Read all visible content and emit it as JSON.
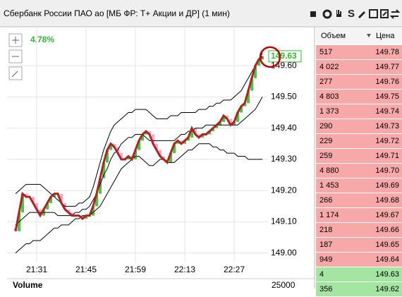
{
  "window": {
    "title": "Сбербанк России ПАО ао [МБ ФР: Т+ Акции и ДР] (1 мин)",
    "toolbar_text": "S"
  },
  "chart_data": {
    "type": "candlestick",
    "change_label": "4.78%",
    "last_price": 149.63,
    "categories": [
      null,
      null,
      null,
      null,
      null,
      null,
      "21:31",
      null,
      null,
      null,
      null,
      null,
      null,
      null,
      null,
      null,
      null,
      null,
      null,
      null,
      "21:45",
      null,
      null,
      null,
      null,
      null,
      null,
      null,
      null,
      null,
      null,
      null,
      null,
      null,
      "21:59",
      null,
      null,
      null,
      null,
      null,
      null,
      null,
      null,
      null,
      null,
      null,
      null,
      null,
      "22:13",
      null,
      null,
      null,
      null,
      null,
      null,
      null,
      null,
      null,
      null,
      null,
      null,
      null,
      "22:27",
      null,
      null,
      null,
      null,
      null,
      null,
      null,
      null
    ],
    "open": [
      149.08,
      149.07,
      149.13,
      149.19,
      149.18,
      149.18,
      149.16,
      149.14,
      149.12,
      149.14,
      149.16,
      149.18,
      149.19,
      149.19,
      149.16,
      149.14,
      149.13,
      149.12,
      149.12,
      149.12,
      149.11,
      149.12,
      149.12,
      149.15,
      149.19,
      149.24,
      149.29,
      149.33,
      149.35,
      149.34,
      149.32,
      149.3,
      149.3,
      149.31,
      149.3,
      149.33,
      149.36,
      149.38,
      149.39,
      149.38,
      149.35,
      149.33,
      149.31,
      149.3,
      149.29,
      149.32,
      149.35,
      149.36,
      149.35,
      149.36,
      149.37,
      149.4,
      149.38,
      149.37,
      149.38,
      149.38,
      149.39,
      149.4,
      149.41,
      149.42,
      149.44,
      149.43,
      149.41,
      149.42,
      149.45,
      149.47,
      149.48,
      149.52,
      149.56,
      149.6,
      149.62
    ],
    "close": [
      149.07,
      149.13,
      149.19,
      149.18,
      149.18,
      149.16,
      149.14,
      149.12,
      149.14,
      149.16,
      149.18,
      149.19,
      149.19,
      149.16,
      149.14,
      149.13,
      149.12,
      149.12,
      149.12,
      149.11,
      149.12,
      149.12,
      149.15,
      149.19,
      149.24,
      149.29,
      149.33,
      149.35,
      149.34,
      149.32,
      149.3,
      149.3,
      149.31,
      149.3,
      149.33,
      149.36,
      149.38,
      149.39,
      149.38,
      149.35,
      149.33,
      149.31,
      149.3,
      149.29,
      149.32,
      149.35,
      149.36,
      149.35,
      149.36,
      149.37,
      149.4,
      149.38,
      149.37,
      149.38,
      149.38,
      149.39,
      149.4,
      149.41,
      149.42,
      149.44,
      149.43,
      149.41,
      149.42,
      149.45,
      149.47,
      149.48,
      149.52,
      149.56,
      149.6,
      149.62,
      149.63
    ],
    "up_color": "#3ccc3c",
    "down_color": "#f0a8c8",
    "line_color": "#b22222",
    "band_color": "#000000",
    "bands": {
      "upper": [
        149.19,
        149.2,
        149.21,
        149.22,
        149.22,
        149.22,
        149.22,
        149.22,
        149.21,
        149.2,
        149.19,
        149.18,
        149.17,
        149.16,
        149.15,
        149.15,
        149.15,
        149.15,
        149.16,
        149.16,
        149.17,
        149.18,
        149.21,
        149.25,
        149.29,
        149.33,
        149.36,
        149.39,
        149.41,
        149.42,
        149.43,
        149.44,
        149.45,
        149.45,
        149.46,
        149.46,
        149.46,
        149.46,
        149.45,
        149.44,
        149.43,
        149.43,
        149.43,
        149.43,
        149.44,
        149.44,
        149.44,
        149.45,
        149.45,
        149.45,
        149.45,
        149.45,
        149.46,
        149.46,
        149.46,
        149.47,
        149.47,
        149.48,
        149.48,
        149.49,
        149.49,
        149.49,
        149.5,
        149.51,
        149.52,
        149.54,
        149.56,
        149.58,
        149.6,
        149.62,
        149.64
      ],
      "middle": [
        149.09,
        149.1,
        149.11,
        149.12,
        149.13,
        149.13,
        149.13,
        149.13,
        149.13,
        149.13,
        149.13,
        149.13,
        149.12,
        149.12,
        149.12,
        149.12,
        149.12,
        149.13,
        149.13,
        149.14,
        149.14,
        149.15,
        149.17,
        149.19,
        149.22,
        149.25,
        149.27,
        149.3,
        149.32,
        149.33,
        149.35,
        149.36,
        149.37,
        149.37,
        149.38,
        149.38,
        149.38,
        149.37,
        149.36,
        149.36,
        149.36,
        149.36,
        149.36,
        149.36,
        149.36,
        149.36,
        149.37,
        149.38,
        149.38,
        149.39,
        149.39,
        149.4,
        149.4,
        149.4,
        149.41,
        149.41,
        149.41,
        149.41,
        149.41,
        149.41,
        149.41,
        149.41,
        149.41,
        149.41,
        149.42,
        149.43,
        149.44,
        149.45,
        149.46,
        149.48,
        149.5
      ],
      "lower": [
        149.0,
        149.01,
        149.02,
        149.03,
        149.03,
        149.04,
        149.04,
        149.04,
        149.05,
        149.06,
        149.07,
        149.08,
        149.08,
        149.09,
        149.09,
        149.09,
        149.1,
        149.11,
        149.11,
        149.12,
        149.12,
        149.12,
        149.13,
        149.14,
        149.15,
        149.17,
        149.19,
        149.21,
        149.23,
        149.25,
        149.27,
        149.28,
        149.29,
        149.3,
        149.31,
        149.31,
        149.3,
        149.29,
        149.28,
        149.28,
        149.29,
        149.3,
        149.3,
        149.29,
        149.29,
        149.29,
        149.3,
        149.31,
        149.32,
        149.33,
        149.33,
        149.34,
        149.35,
        149.35,
        149.35,
        149.35,
        149.34,
        149.34,
        149.33,
        149.33,
        149.32,
        149.32,
        149.32,
        149.31,
        149.31,
        149.31,
        149.3,
        149.3,
        149.3,
        149.3,
        149.3
      ]
    },
    "ylim": [
      148.97,
      149.72
    ],
    "yticks": [
      {
        "value": 149.0,
        "label": "149.00"
      },
      {
        "value": 149.1,
        "label": "149.10"
      },
      {
        "value": 149.2,
        "label": "149.20"
      },
      {
        "value": 149.3,
        "label": "149.30"
      },
      {
        "value": 149.4,
        "label": "149.40"
      },
      {
        "value": 149.5,
        "label": "149.50"
      },
      {
        "value": 149.6,
        "label": "149.60"
      }
    ],
    "grid": true,
    "volume": {
      "label": "Volume",
      "yticks": [
        25000
      ]
    }
  },
  "order_book": {
    "headers": [
      "Объем",
      "Цена"
    ],
    "ask_color": "#f7a9a9",
    "bid_color": "#a2e6a2",
    "asks": [
      [
        "517",
        "149.78"
      ],
      [
        "4 022",
        "149.77"
      ],
      [
        "277",
        "149.76"
      ],
      [
        "4 803",
        "149.75"
      ],
      [
        "1 373",
        "149.74"
      ],
      [
        "290",
        "149.73"
      ],
      [
        "229",
        "149.72"
      ],
      [
        "259",
        "149.71"
      ],
      [
        "4 880",
        "149.70"
      ],
      [
        "1 453",
        "149.69"
      ],
      [
        "266",
        "149.68"
      ],
      [
        "1 174",
        "149.67"
      ],
      [
        "218",
        "149.66"
      ],
      [
        "187",
        "149.65"
      ],
      [
        "949",
        "149.64"
      ]
    ],
    "bids": [
      [
        "4",
        "149.63"
      ],
      [
        "356",
        "149.62"
      ]
    ]
  }
}
